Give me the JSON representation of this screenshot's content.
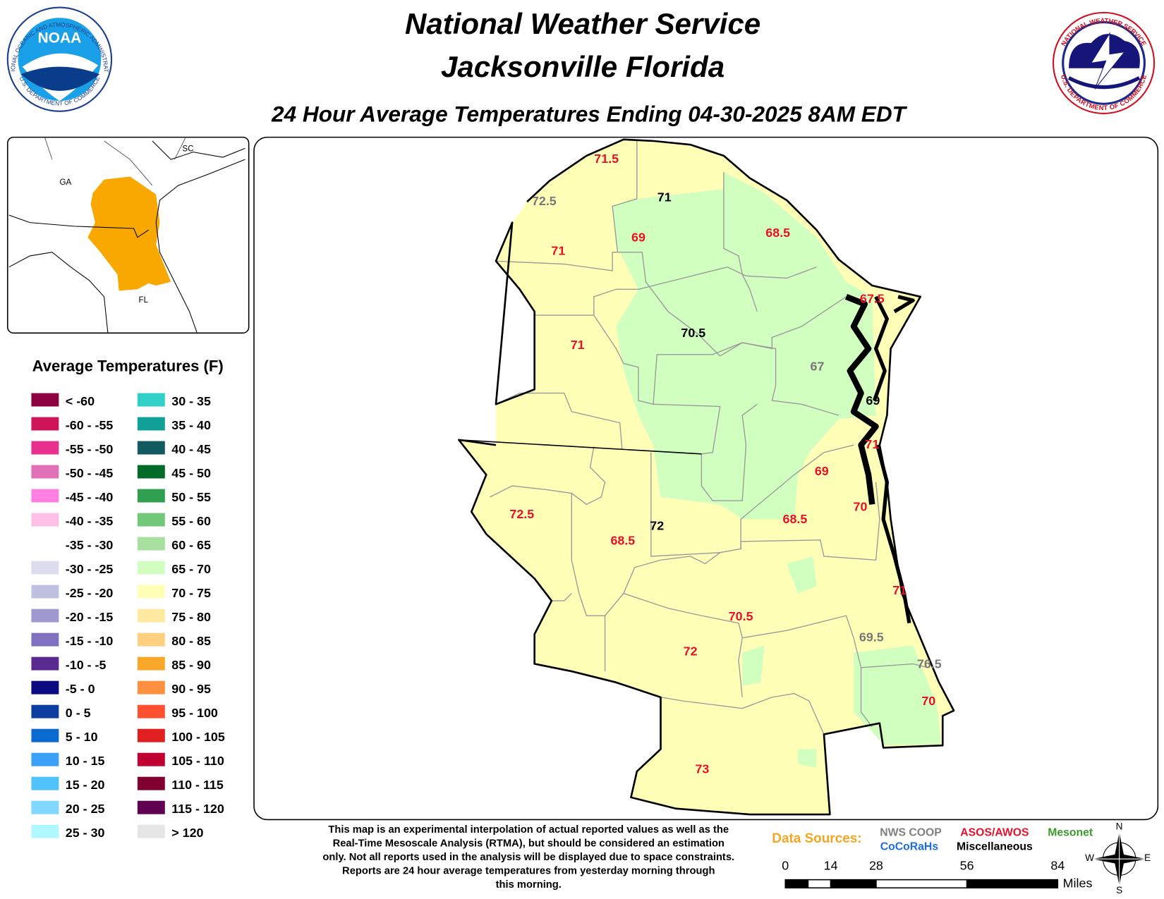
{
  "header": {
    "title_line1": "National Weather Service",
    "title_line2": "Jacksonville Florida",
    "subtitle": "24 Hour Average Temperatures Ending 04-30-2025 8AM EDT"
  },
  "logos": {
    "noaa": {
      "acronym": "NOAA",
      "ring_top": "NATIONAL OCEANIC AND ATMOSPHERIC ADMINISTRATION",
      "ring_bottom": "U.S. DEPARTMENT OF COMMERCE"
    },
    "nws": {
      "ring_top": "NATIONAL WEATHER SERVICE",
      "ring_bottom": "U.S. DEPARTMENT OF COMMERCE"
    }
  },
  "inset": {
    "labels": [
      "GA",
      "SC",
      "FL"
    ],
    "highlight_color": "#f9a800"
  },
  "legend": {
    "title": "Average Temperatures (F)",
    "items": [
      {
        "label": "< -60",
        "color": "#8b0040"
      },
      {
        "label": "-60 - -55",
        "color": "#d0145a"
      },
      {
        "label": "-55 - -50",
        "color": "#e8308f"
      },
      {
        "label": "-50 - -45",
        "color": "#e070b8"
      },
      {
        "label": "-45 - -40",
        "color": "#ff80e0"
      },
      {
        "label": "-40 - -35",
        "color": "#ffc0e8"
      },
      {
        "label": "-35 - -30",
        "color": "#ffffff"
      },
      {
        "label": "-30 - -25",
        "color": "#dcdcee"
      },
      {
        "label": "-25 - -20",
        "color": "#c0c0e0"
      },
      {
        "label": "-20 - -15",
        "color": "#a098d0"
      },
      {
        "label": "-15 - -10",
        "color": "#8070c0"
      },
      {
        "label": "-10 - -5",
        "color": "#5a2a90"
      },
      {
        "label": "-5 - 0",
        "color": "#0a0a80"
      },
      {
        "label": "0 - 5",
        "color": "#0c3ea0"
      },
      {
        "label": "5 - 10",
        "color": "#0a6ad0"
      },
      {
        "label": "10 - 15",
        "color": "#3aa0f8"
      },
      {
        "label": "15 - 20",
        "color": "#50c4fa"
      },
      {
        "label": "20 - 25",
        "color": "#80d8ff"
      },
      {
        "label": "25 - 30",
        "color": "#b0f8ff"
      },
      {
        "label": "30 - 35",
        "color": "#30d0c8"
      },
      {
        "label": "35 - 40",
        "color": "#10a098"
      },
      {
        "label": "40 - 45",
        "color": "#105a60"
      },
      {
        "label": "45 - 50",
        "color": "#006a28"
      },
      {
        "label": "50 - 55",
        "color": "#30a050"
      },
      {
        "label": "55 - 60",
        "color": "#70c878"
      },
      {
        "label": "60 - 65",
        "color": "#a8e0a0"
      },
      {
        "label": "65 - 70",
        "color": "#d0ffc0"
      },
      {
        "label": "70 - 75",
        "color": "#ffffb8"
      },
      {
        "label": "75 - 80",
        "color": "#ffe8a0"
      },
      {
        "label": "80 - 85",
        "color": "#ffd080"
      },
      {
        "label": "85 - 90",
        "color": "#f8a828"
      },
      {
        "label": "90 - 95",
        "color": "#ff9040"
      },
      {
        "label": "95 - 100",
        "color": "#ff5030"
      },
      {
        "label": "100 - 105",
        "color": "#e02020"
      },
      {
        "label": "105 - 110",
        "color": "#c00030"
      },
      {
        "label": "110 - 115",
        "color": "#800030"
      },
      {
        "label": "115 - 120",
        "color": "#600050"
      },
      {
        "label": "> 120",
        "color": "#e6e6e6"
      }
    ]
  },
  "stations": [
    {
      "value": 71.5,
      "color": "#e8102a"
    },
    {
      "value": 72.5,
      "color": "#777777"
    },
    {
      "value": 71,
      "color": "#000000"
    },
    {
      "value": 69,
      "color": "#e8102a"
    },
    {
      "value": 68.5,
      "color": "#e8102a"
    },
    {
      "value": 71,
      "color": "#e8102a"
    },
    {
      "value": 67.5,
      "color": "#e8102a"
    },
    {
      "value": 70.5,
      "color": "#000000"
    },
    {
      "value": 71,
      "color": "#e8102a"
    },
    {
      "value": 67,
      "color": "#777777"
    },
    {
      "value": 69,
      "color": "#000000"
    },
    {
      "value": 71,
      "color": "#e8102a"
    },
    {
      "value": 69,
      "color": "#e8102a"
    },
    {
      "value": 72.5,
      "color": "#e8102a"
    },
    {
      "value": 70,
      "color": "#e8102a"
    },
    {
      "value": 72,
      "color": "#000000"
    },
    {
      "value": 68.5,
      "color": "#e8102a"
    },
    {
      "value": 68.5,
      "color": "#e8102a"
    },
    {
      "value": 71,
      "color": "#e8102a"
    },
    {
      "value": 70.5,
      "color": "#e8102a"
    },
    {
      "value": 69.5,
      "color": "#777777"
    },
    {
      "value": 76.5,
      "color": "#777777"
    },
    {
      "value": 72,
      "color": "#e8102a"
    },
    {
      "value": 70,
      "color": "#e8102a"
    },
    {
      "value": 73,
      "color": "#e8102a"
    }
  ],
  "disclaimer": [
    "This map is an experimental interpolation of actual reported values as well as the",
    "Real-Time Mesoscale Analysis (RTMA), but should be considered an estimation",
    "only. Not all reports used in the analysis will be displayed due to space constraints.",
    "Reports are 24 hour average temperatures from yesterday morning through",
    "this morning."
  ],
  "data_sources": {
    "label": "Data Sources:",
    "label_color": "#f5a623",
    "sources": [
      {
        "name": "NWS COOP",
        "color": "#808080"
      },
      {
        "name": "ASOS/AWOS",
        "color": "#e8102a"
      },
      {
        "name": "Mesonet",
        "color": "#3a9a2a"
      },
      {
        "name": "CoCoRaHs",
        "color": "#1a6ee0"
      },
      {
        "name": "Miscellaneous",
        "color": "#000000"
      }
    ]
  },
  "scale": {
    "ticks": [
      0,
      14,
      28,
      56,
      84
    ],
    "unit": "Miles"
  },
  "compass": [
    "N",
    "E",
    "S",
    "W"
  ]
}
